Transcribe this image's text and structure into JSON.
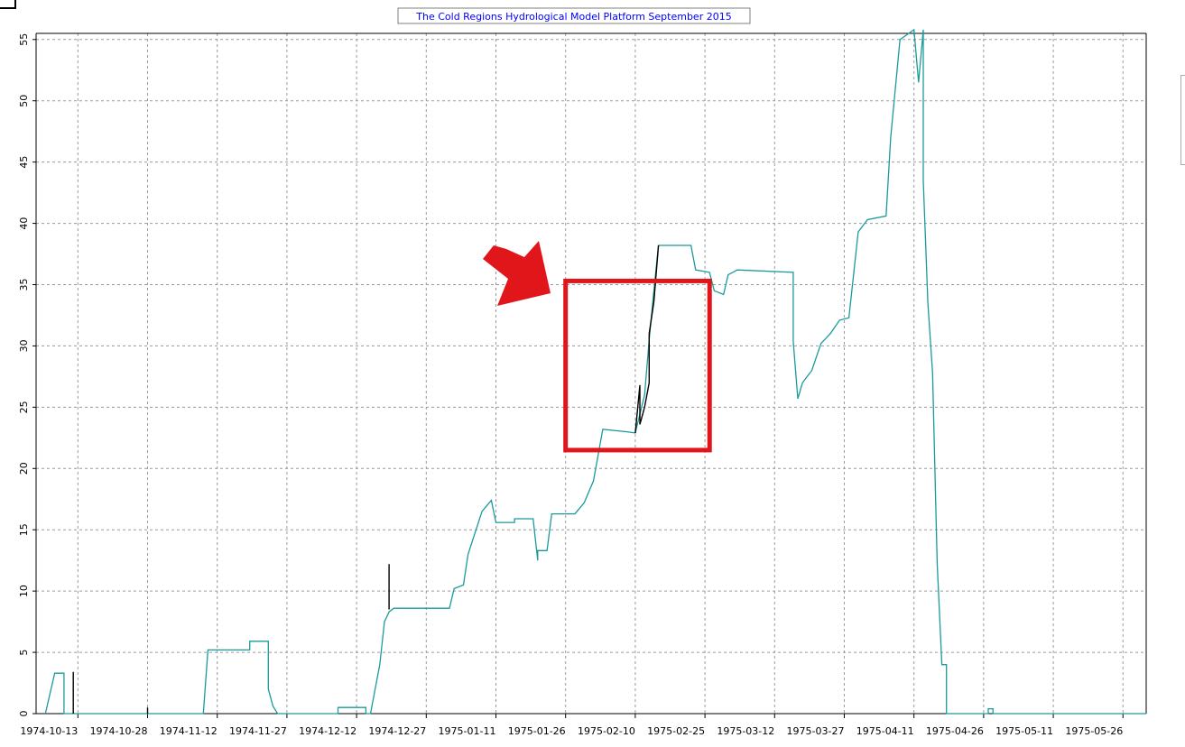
{
  "colors": {
    "series_teal": "#1a9b9b",
    "series_black": "#000000",
    "grid": "#9a9a9a",
    "title_text": "#0000ff",
    "annotation_red": "#e0161b"
  },
  "chart_data": {
    "type": "line",
    "title": "The Cold Regions Hydrological Model Platform September 2015",
    "xlabel": "",
    "ylabel": "",
    "ylim": [
      0,
      55.5
    ],
    "yticks": [
      "0",
      "5",
      "10",
      "15",
      "20",
      "25",
      "30",
      "35",
      "40",
      "45",
      "50",
      "55"
    ],
    "xlim": [
      "1974-10-04",
      "1975-05-31"
    ],
    "xticks": [
      "1974-10-13",
      "1974-10-28",
      "1974-11-12",
      "1974-11-27",
      "1974-12-12",
      "1974-12-27",
      "1975-01-11",
      "1975-01-26",
      "1975-02-10",
      "1975-02-25",
      "1975-03-12",
      "1975-03-27",
      "1975-04-11",
      "1975-04-26",
      "1975-05-11",
      "1975-05-26"
    ],
    "grid": true,
    "series": [
      {
        "color": "teal",
        "points": [
          [
            "1974-10-06",
            0
          ],
          [
            "1974-10-08",
            3.3
          ],
          [
            "1974-10-10",
            3.3
          ],
          [
            "1974-10-10",
            0
          ],
          [
            "1974-11-09",
            0
          ],
          [
            "1974-11-10",
            5.2
          ],
          [
            "1974-11-19",
            5.2
          ],
          [
            "1974-11-19",
            5.9
          ],
          [
            "1974-11-23",
            5.9
          ],
          [
            "1974-11-23",
            2
          ],
          [
            "1974-11-24",
            0.6
          ],
          [
            "1974-11-25",
            0
          ],
          [
            "1974-12-08",
            0
          ],
          [
            "1974-12-08",
            0.5
          ],
          [
            "1974-12-14",
            0.5
          ],
          [
            "1974-12-14",
            0
          ],
          [
            "1974-12-15",
            0
          ],
          [
            "1974-12-17",
            4
          ],
          [
            "1974-12-18",
            7.5
          ],
          [
            "1974-12-19",
            8.3
          ],
          [
            "1974-12-20",
            8.6
          ],
          [
            "1975-01-01",
            8.6
          ],
          [
            "1975-01-02",
            10.2
          ],
          [
            "1975-01-04",
            10.5
          ],
          [
            "1975-01-05",
            13
          ],
          [
            "1975-01-08",
            16.5
          ],
          [
            "1975-01-10",
            17.4
          ],
          [
            "1975-01-11",
            15.6
          ],
          [
            "1975-01-15",
            15.6
          ],
          [
            "1975-01-15",
            15.9
          ],
          [
            "1975-01-19",
            15.9
          ],
          [
            "1975-01-20",
            12.5
          ],
          [
            "1975-01-20",
            13.3
          ],
          [
            "1975-01-22",
            13.3
          ],
          [
            "1975-01-23",
            16.3
          ],
          [
            "1975-01-28",
            16.3
          ],
          [
            "1975-01-30",
            17.2
          ],
          [
            "1975-02-01",
            19
          ],
          [
            "1975-02-03",
            23.2
          ],
          [
            "1975-02-08",
            23
          ],
          [
            "1975-02-10",
            22.9
          ],
          [
            "1975-02-12",
            26
          ],
          [
            "1975-02-13",
            30.5
          ],
          [
            "1975-02-14",
            34.5
          ],
          [
            "1975-02-15",
            38.2
          ],
          [
            "1975-02-22",
            38.2
          ],
          [
            "1975-02-23",
            36.2
          ],
          [
            "1975-02-26",
            36
          ],
          [
            "1975-02-27",
            34.5
          ],
          [
            "1975-02-29",
            34.2
          ],
          [
            "1975-03-02",
            35.8
          ],
          [
            "1975-03-04",
            36.2
          ],
          [
            "1975-03-16",
            36
          ],
          [
            "1975-03-16",
            30.4
          ],
          [
            "1975-03-17",
            25.7
          ],
          [
            "1975-03-18",
            27
          ],
          [
            "1975-03-20",
            28
          ],
          [
            "1975-03-22",
            30.2
          ],
          [
            "1975-03-24",
            31
          ],
          [
            "1975-03-26",
            32.1
          ],
          [
            "1975-03-28",
            32.3
          ],
          [
            "1975-03-30",
            39.3
          ],
          [
            "1975-04-01",
            40.3
          ],
          [
            "1975-04-05",
            40.6
          ],
          [
            "1975-04-06",
            47
          ],
          [
            "1975-04-08",
            55
          ],
          [
            "1975-04-11",
            55.8
          ],
          [
            "1975-04-12",
            51.5
          ],
          [
            "1975-04-13",
            55.8
          ],
          [
            "1975-04-13",
            43.5
          ],
          [
            "1975-04-14",
            33.5
          ],
          [
            "1975-04-15",
            27.8
          ],
          [
            "1975-04-16",
            12.3
          ],
          [
            "1975-04-17",
            4
          ],
          [
            "1975-04-18",
            4
          ],
          [
            "1975-04-18",
            0
          ],
          [
            "1975-04-27",
            0
          ],
          [
            "1975-04-27",
            0.4
          ],
          [
            "1975-04-28",
            0.4
          ],
          [
            "1975-04-28",
            0
          ],
          [
            "1975-05-31",
            0
          ]
        ]
      },
      {
        "color": "black",
        "points": [
          [
            "1974-10-12",
            0
          ],
          [
            "1974-10-12",
            3.4
          ],
          [
            "1974-10-12",
            0
          ],
          [
            "1974-10-28",
            0
          ],
          [
            "1974-10-28",
            0.5
          ],
          [
            "1974-10-28",
            0
          ],
          [
            "1974-12-19",
            8.5
          ],
          [
            "1974-12-19",
            12.2
          ],
          [
            "1974-12-19",
            8.5
          ],
          [
            "1975-02-10",
            22.9
          ],
          [
            "1975-02-11",
            26.8
          ],
          [
            "1975-02-11",
            23.6
          ],
          [
            "1975-02-12",
            25
          ],
          [
            "1975-02-13",
            27
          ],
          [
            "1975-02-13",
            31
          ],
          [
            "1975-02-14",
            33.6
          ],
          [
            "1975-02-15",
            38.2
          ]
        ]
      }
    ],
    "annotations": [
      {
        "shape": "arrow",
        "color": "red"
      },
      {
        "shape": "rectangle",
        "color": "red",
        "x_range": [
          "1975-01-26",
          "1975-02-26"
        ],
        "y_range": [
          21.5,
          35.3
        ]
      }
    ]
  }
}
